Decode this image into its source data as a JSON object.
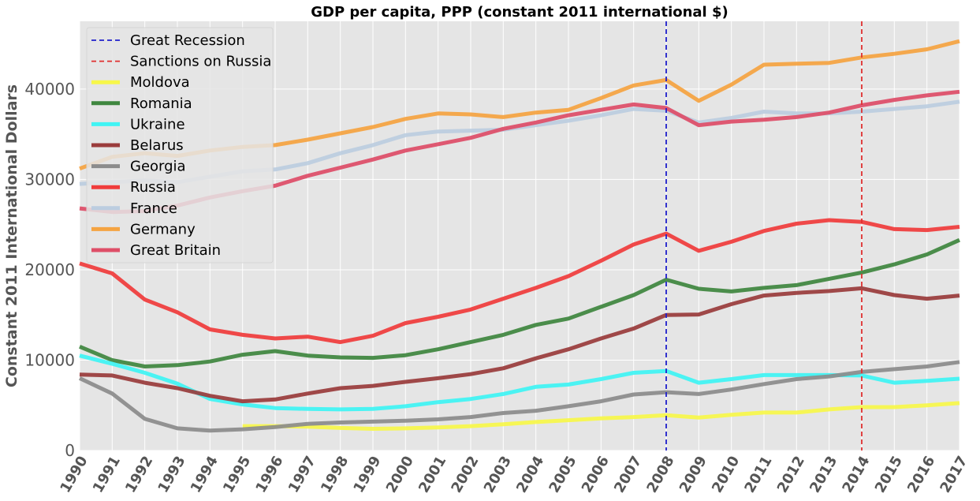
{
  "chart_data": {
    "type": "line",
    "title": "GDP per capita, PPP (constant 2011 international $)",
    "xlabel": "",
    "ylabel": "Constant 2011 International Dollars",
    "xlim": [
      1990,
      2017
    ],
    "ylim": [
      0,
      47500
    ],
    "yticks": [
      0,
      10000,
      20000,
      30000,
      40000
    ],
    "x": [
      1990,
      1991,
      1992,
      1993,
      1994,
      1995,
      1996,
      1997,
      1998,
      1999,
      2000,
      2001,
      2002,
      2003,
      2004,
      2005,
      2006,
      2007,
      2008,
      2009,
      2010,
      2011,
      2012,
      2013,
      2014,
      2015,
      2016,
      2017
    ],
    "grid": true,
    "legend_position": "top-left",
    "vlines": [
      {
        "name": "Great Recession",
        "x": 2008,
        "color": "#1f1fcc"
      },
      {
        "name": "Sanctions on Russia",
        "x": 2014,
        "color": "#e03030"
      }
    ],
    "series": [
      {
        "name": "Moldova",
        "color": "#f7f74a",
        "values": [
          null,
          null,
          null,
          null,
          null,
          2700,
          2700,
          2650,
          2500,
          2400,
          2450,
          2550,
          2700,
          2900,
          3150,
          3350,
          3550,
          3700,
          3900,
          3650,
          3950,
          4200,
          4200,
          4550,
          4800,
          4800,
          5000,
          5250
        ]
      },
      {
        "name": "Romania",
        "color": "#3f873f",
        "values": [
          11500,
          10000,
          9300,
          9450,
          9850,
          10600,
          11000,
          10500,
          10300,
          10250,
          10550,
          11200,
          12000,
          12800,
          13900,
          14600,
          15900,
          17200,
          18900,
          17900,
          17600,
          18000,
          18300,
          19000,
          19700,
          20600,
          21700,
          23300
        ]
      },
      {
        "name": "Ukraine",
        "color": "#40f4f4",
        "values": [
          10500,
          9600,
          8600,
          7400,
          5700,
          5100,
          4700,
          4600,
          4550,
          4600,
          4900,
          5350,
          5700,
          6250,
          7050,
          7300,
          7900,
          8600,
          8800,
          7500,
          7900,
          8350,
          8350,
          8350,
          8300,
          7500,
          7700,
          7950
        ]
      },
      {
        "name": "Belarus",
        "color": "#9a3c3c",
        "values": [
          8400,
          8300,
          7500,
          6900,
          6050,
          5450,
          5650,
          6300,
          6900,
          7150,
          7600,
          8000,
          8450,
          9100,
          10200,
          11200,
          12400,
          13500,
          15000,
          15050,
          16200,
          17150,
          17450,
          17650,
          17950,
          17200,
          16800,
          17150
        ]
      },
      {
        "name": "Georgia",
        "color": "#8c8c8c",
        "values": [
          8000,
          6300,
          3500,
          2450,
          2200,
          2350,
          2600,
          2950,
          3100,
          3200,
          3300,
          3450,
          3700,
          4150,
          4400,
          4900,
          5450,
          6200,
          6450,
          6250,
          6750,
          7350,
          7900,
          8200,
          8700,
          9000,
          9300,
          9800
        ]
      },
      {
        "name": "Russia",
        "color": "#f03c3c",
        "values": [
          20700,
          19600,
          16700,
          15300,
          13400,
          12800,
          12400,
          12600,
          12000,
          12700,
          14100,
          14800,
          15600,
          16800,
          18000,
          19300,
          21000,
          22800,
          24000,
          22100,
          23100,
          24300,
          25100,
          25500,
          25300,
          24500,
          24400,
          24750
        ]
      },
      {
        "name": "France",
        "color": "#bccde0",
        "values": [
          29500,
          29700,
          29900,
          29700,
          30300,
          30900,
          31100,
          31800,
          32900,
          33800,
          34900,
          35300,
          35400,
          35500,
          36000,
          36500,
          37100,
          37800,
          37600,
          36300,
          36800,
          37500,
          37300,
          37300,
          37500,
          37800,
          38100,
          38600
        ]
      },
      {
        "name": "Germany",
        "color": "#f5a442",
        "values": [
          31200,
          32500,
          32900,
          32600,
          33200,
          33600,
          33800,
          34400,
          35100,
          35800,
          36700,
          37300,
          37200,
          36900,
          37400,
          37700,
          39000,
          40400,
          41000,
          38700,
          40500,
          42700,
          42800,
          42900,
          43500,
          43900,
          44400,
          45300
        ]
      },
      {
        "name": "Great Britain",
        "color": "#de4e68",
        "values": [
          26800,
          26400,
          26500,
          27100,
          28000,
          28700,
          29300,
          30400,
          31300,
          32200,
          33200,
          33900,
          34600,
          35600,
          36300,
          37100,
          37700,
          38300,
          37900,
          36000,
          36400,
          36600,
          36900,
          37400,
          38200,
          38800,
          39300,
          39700
        ]
      }
    ]
  }
}
